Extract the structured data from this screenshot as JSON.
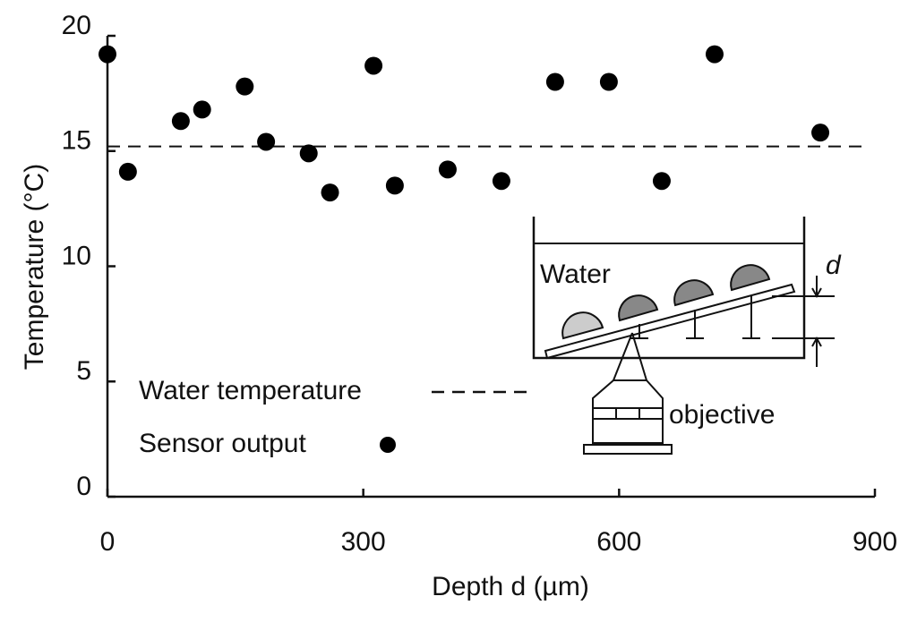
{
  "chart_data": {
    "type": "scatter",
    "xlabel": "Depth d (µm)",
    "ylabel": "Temperature (°C)",
    "xlim": [
      0,
      900
    ],
    "xticks": [
      0,
      300,
      600,
      900
    ],
    "ylim": [
      0,
      20
    ],
    "yticks": [
      0,
      5,
      10,
      15,
      20
    ],
    "series": [
      {
        "name": "Sensor output",
        "color": "#000000",
        "x": [
          0,
          24,
          86,
          111,
          161,
          186,
          236,
          261,
          312,
          337,
          399,
          462,
          525,
          588,
          650,
          712,
          836
        ],
        "values": [
          19.2,
          14.1,
          16.3,
          16.8,
          17.8,
          15.4,
          14.9,
          13.2,
          18.7,
          13.5,
          14.2,
          13.7,
          18.0,
          18.0,
          13.7,
          19.2,
          15.8
        ]
      }
    ],
    "reference_line": {
      "name": "Water temperature",
      "value": 15.2
    },
    "inset_labels": [
      "Water",
      "d",
      "objective"
    ]
  }
}
